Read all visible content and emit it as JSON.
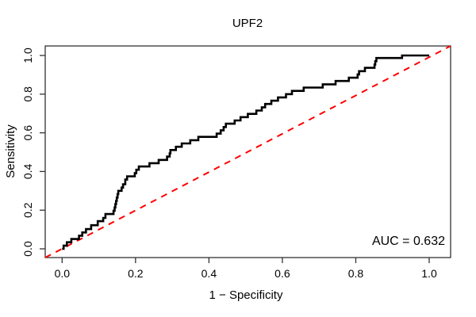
{
  "figure": {
    "background": "#FFFFFF"
  },
  "chart_data": {
    "type": "line",
    "chart_kind": "roc-curve",
    "title": "UPF2",
    "xlabel": "1 − Specificity",
    "ylabel": "Sensitivity",
    "xlim": [
      0,
      1
    ],
    "ylim": [
      0,
      1
    ],
    "grid": false,
    "legend": "none",
    "x_ticks": [
      0,
      0.2,
      0.4,
      0.6,
      0.8,
      1
    ],
    "x_tick_labels": [
      "0.0",
      "0.2",
      "0.4",
      "0.6",
      "0.8",
      "1.0"
    ],
    "y_ticks": [
      0,
      0.2,
      0.4,
      0.6,
      0.8,
      1
    ],
    "y_tick_labels": [
      "0.0",
      "0.2",
      "0.4",
      "0.6",
      "0.8",
      "1.0"
    ],
    "annotation": "AUC = 0.632",
    "auc": 0.632,
    "colors": {
      "curve": "#000000",
      "diagonal": "#FF0000",
      "axis": "#333333",
      "text": "#000000"
    },
    "series": [
      {
        "name": "ROC curve (UPF2)",
        "style": "step-solid",
        "color": "#000000",
        "points": [
          [
            0.0,
            0.0
          ],
          [
            0.004,
            0.0
          ],
          [
            0.004,
            0.017
          ],
          [
            0.013,
            0.017
          ],
          [
            0.013,
            0.034
          ],
          [
            0.025,
            0.034
          ],
          [
            0.025,
            0.051
          ],
          [
            0.046,
            0.051
          ],
          [
            0.046,
            0.068
          ],
          [
            0.055,
            0.068
          ],
          [
            0.055,
            0.085
          ],
          [
            0.065,
            0.085
          ],
          [
            0.065,
            0.102
          ],
          [
            0.079,
            0.102
          ],
          [
            0.079,
            0.122
          ],
          [
            0.097,
            0.122
          ],
          [
            0.097,
            0.143
          ],
          [
            0.112,
            0.143
          ],
          [
            0.112,
            0.16
          ],
          [
            0.118,
            0.16
          ],
          [
            0.118,
            0.18
          ],
          [
            0.14,
            0.18
          ],
          [
            0.14,
            0.197
          ],
          [
            0.143,
            0.197
          ],
          [
            0.143,
            0.214
          ],
          [
            0.145,
            0.214
          ],
          [
            0.145,
            0.231
          ],
          [
            0.147,
            0.231
          ],
          [
            0.147,
            0.248
          ],
          [
            0.149,
            0.248
          ],
          [
            0.149,
            0.265
          ],
          [
            0.151,
            0.265
          ],
          [
            0.151,
            0.283
          ],
          [
            0.153,
            0.283
          ],
          [
            0.153,
            0.3
          ],
          [
            0.162,
            0.3
          ],
          [
            0.162,
            0.317
          ],
          [
            0.166,
            0.317
          ],
          [
            0.166,
            0.334
          ],
          [
            0.172,
            0.334
          ],
          [
            0.172,
            0.358
          ],
          [
            0.177,
            0.358
          ],
          [
            0.177,
            0.375
          ],
          [
            0.198,
            0.375
          ],
          [
            0.198,
            0.392
          ],
          [
            0.202,
            0.392
          ],
          [
            0.202,
            0.409
          ],
          [
            0.209,
            0.409
          ],
          [
            0.209,
            0.426
          ],
          [
            0.238,
            0.426
          ],
          [
            0.238,
            0.443
          ],
          [
            0.263,
            0.443
          ],
          [
            0.263,
            0.46
          ],
          [
            0.286,
            0.46
          ],
          [
            0.286,
            0.477
          ],
          [
            0.293,
            0.477
          ],
          [
            0.293,
            0.494
          ],
          [
            0.295,
            0.494
          ],
          [
            0.295,
            0.511
          ],
          [
            0.31,
            0.511
          ],
          [
            0.31,
            0.528
          ],
          [
            0.326,
            0.528
          ],
          [
            0.326,
            0.545
          ],
          [
            0.349,
            0.545
          ],
          [
            0.349,
            0.562
          ],
          [
            0.371,
            0.562
          ],
          [
            0.371,
            0.579
          ],
          [
            0.421,
            0.579
          ],
          [
            0.421,
            0.596
          ],
          [
            0.432,
            0.596
          ],
          [
            0.432,
            0.613
          ],
          [
            0.44,
            0.613
          ],
          [
            0.44,
            0.63
          ],
          [
            0.446,
            0.63
          ],
          [
            0.446,
            0.647
          ],
          [
            0.47,
            0.647
          ],
          [
            0.47,
            0.664
          ],
          [
            0.486,
            0.664
          ],
          [
            0.486,
            0.681
          ],
          [
            0.506,
            0.681
          ],
          [
            0.506,
            0.698
          ],
          [
            0.529,
            0.698
          ],
          [
            0.529,
            0.715
          ],
          [
            0.544,
            0.715
          ],
          [
            0.544,
            0.732
          ],
          [
            0.553,
            0.732
          ],
          [
            0.553,
            0.749
          ],
          [
            0.57,
            0.749
          ],
          [
            0.57,
            0.766
          ],
          [
            0.588,
            0.766
          ],
          [
            0.588,
            0.783
          ],
          [
            0.61,
            0.783
          ],
          [
            0.61,
            0.8
          ],
          [
            0.626,
            0.8
          ],
          [
            0.626,
            0.817
          ],
          [
            0.658,
            0.817
          ],
          [
            0.658,
            0.834
          ],
          [
            0.71,
            0.834
          ],
          [
            0.71,
            0.851
          ],
          [
            0.745,
            0.851
          ],
          [
            0.745,
            0.868
          ],
          [
            0.781,
            0.868
          ],
          [
            0.781,
            0.885
          ],
          [
            0.805,
            0.885
          ],
          [
            0.805,
            0.902
          ],
          [
            0.809,
            0.902
          ],
          [
            0.809,
            0.919
          ],
          [
            0.825,
            0.919
          ],
          [
            0.825,
            0.936
          ],
          [
            0.851,
            0.936
          ],
          [
            0.851,
            0.953
          ],
          [
            0.853,
            0.953
          ],
          [
            0.853,
            0.97
          ],
          [
            0.856,
            0.97
          ],
          [
            0.856,
            0.987
          ],
          [
            0.926,
            0.987
          ],
          [
            0.926,
            1.0
          ],
          [
            1.0,
            1.0
          ]
        ]
      },
      {
        "name": "chance line",
        "style": "dashed",
        "color": "#FF0000",
        "points": [
          [
            0,
            0
          ],
          [
            1,
            1
          ]
        ]
      }
    ]
  }
}
